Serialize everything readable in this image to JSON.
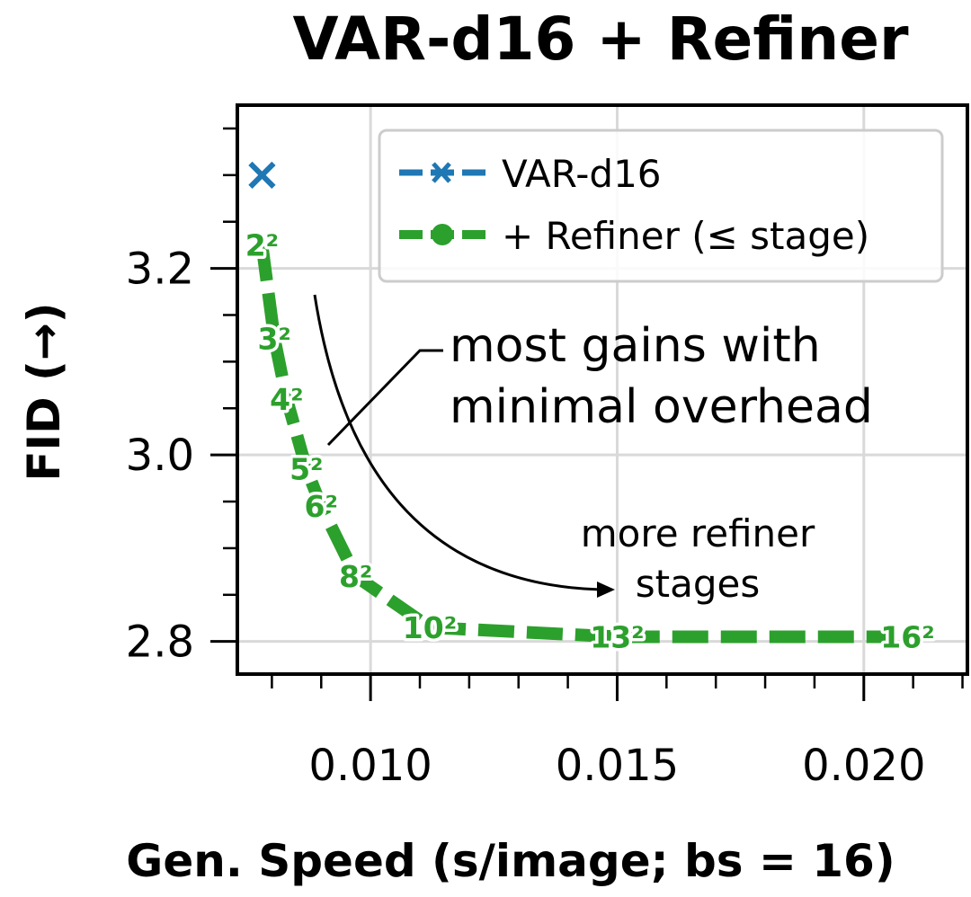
{
  "chart_data": {
    "type": "line",
    "title": "VAR-d16 + Refiner",
    "xlabel": "Gen. Speed (s/image; bs = 16)",
    "ylabel": "FID (→)",
    "xlim": [
      0.0073,
      0.0221
    ],
    "ylim": [
      2.765,
      3.375
    ],
    "xticks": [
      0.01,
      0.015,
      0.02
    ],
    "xtick_labels": [
      "0.010",
      "0.015",
      "0.020"
    ],
    "yticks": [
      2.8,
      3.0,
      3.2
    ],
    "ytick_labels": [
      "2.8",
      "3.0",
      "3.2"
    ],
    "grid": true,
    "legend_position": "top-right",
    "series": [
      {
        "name": "VAR-d16",
        "color": "#1f77b4",
        "marker": "x",
        "x": [
          0.0078
        ],
        "y": [
          3.3
        ]
      },
      {
        "name": "+ Refiner (≤ stage)",
        "color": "#2ca02c",
        "marker": "o",
        "x": [
          0.0078,
          0.00805,
          0.0083,
          0.0087,
          0.009,
          0.0097,
          0.0112,
          0.015,
          0.0206
        ],
        "y": [
          3.225,
          3.125,
          3.06,
          2.985,
          2.945,
          2.87,
          2.815,
          2.805,
          2.805
        ],
        "point_labels": [
          "2²",
          "3²",
          "4²",
          "5²",
          "6²",
          "8²",
          "10²",
          "13²",
          "16²"
        ]
      }
    ],
    "annotations": [
      {
        "text_lines": [
          "most gains with",
          "minimal overhead"
        ]
      },
      {
        "text_lines": [
          "more refiner",
          "stages"
        ]
      }
    ]
  }
}
